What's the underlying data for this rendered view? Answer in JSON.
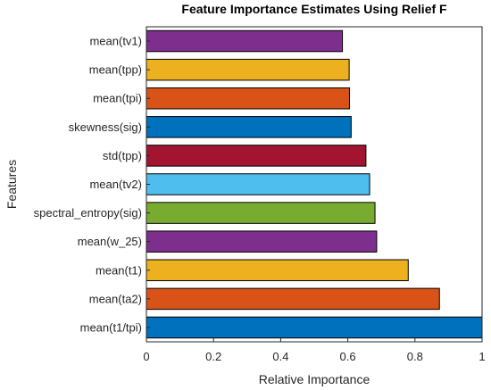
{
  "chart_data": {
    "type": "bar",
    "orientation": "horizontal",
    "title": "Feature Importance Estimates Using  Relief F",
    "xlabel": "Relative Importance",
    "ylabel": "Features",
    "xlim": [
      0,
      1
    ],
    "xticks": [
      "0",
      "0.2",
      "0.4",
      "0.6",
      "0.8",
      "1"
    ],
    "grid": false,
    "categories": [
      "mean(tv1)",
      "mean(tpp)",
      "mean(tpi)",
      "skewness(sig)",
      "std(tpp)",
      "mean(tv2)",
      "spectral_entropy(sig)",
      "mean(w_25)",
      "mean(t1)",
      "mean(ta2)",
      "mean(t1/tpi)"
    ],
    "values": [
      0.584,
      0.604,
      0.605,
      0.61,
      0.654,
      0.665,
      0.681,
      0.686,
      0.78,
      0.873,
      1.0
    ],
    "colors": [
      "#7E2F8E",
      "#EDB120",
      "#D95319",
      "#0072BD",
      "#A2142F",
      "#4DBEEE",
      "#77AC30",
      "#7E2F8E",
      "#EDB120",
      "#D95319",
      "#0072BD"
    ]
  }
}
